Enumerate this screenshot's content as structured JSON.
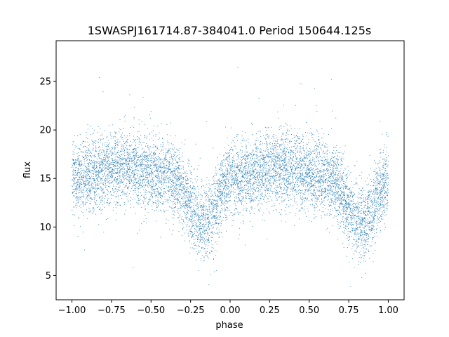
{
  "chart_data": {
    "type": "scatter",
    "title": "1SWASPJ161714.87-384041.0 Period 150644.125s",
    "xlabel": "phase",
    "ylabel": "flux",
    "xlim": [
      -1.1,
      1.1
    ],
    "ylim": [
      2.5,
      29.2
    ],
    "x_ticks": [
      -1.0,
      -0.75,
      -0.5,
      -0.25,
      0.0,
      0.25,
      0.5,
      0.75,
      1.0
    ],
    "x_tick_labels": [
      "−1.00",
      "−0.75",
      "−0.50",
      "−0.25",
      "0.00",
      "0.25",
      "0.50",
      "0.75",
      "1.00"
    ],
    "y_ticks": [
      5,
      10,
      15,
      20,
      25
    ],
    "y_tick_labels": [
      "5",
      "10",
      "15",
      "20",
      "25"
    ],
    "grid": false,
    "legend": "none",
    "marker_color": "#1f77b4",
    "light_curve_profile": {
      "phase": [
        -1.0,
        -0.9,
        -0.8,
        -0.7,
        -0.6,
        -0.5,
        -0.4,
        -0.35,
        -0.3,
        -0.25,
        -0.2,
        -0.15,
        -0.1,
        -0.05,
        0.0,
        0.1,
        0.2,
        0.3,
        0.4,
        0.5,
        0.6,
        0.65,
        0.7,
        0.75,
        0.8,
        0.85,
        0.9,
        0.95,
        1.0
      ],
      "mean_flux": [
        15.0,
        15.2,
        15.8,
        16.2,
        16.0,
        15.6,
        15.2,
        14.8,
        13.8,
        12.0,
        10.5,
        10.3,
        11.8,
        13.8,
        14.8,
        15.2,
        15.8,
        16.2,
        16.0,
        15.6,
        15.2,
        14.8,
        13.8,
        12.0,
        10.5,
        10.3,
        11.8,
        13.8,
        15.0
      ],
      "scatter_sigma": 1.9,
      "n_points": 9000,
      "flux_min": 3.7,
      "flux_max": 28.2
    }
  }
}
